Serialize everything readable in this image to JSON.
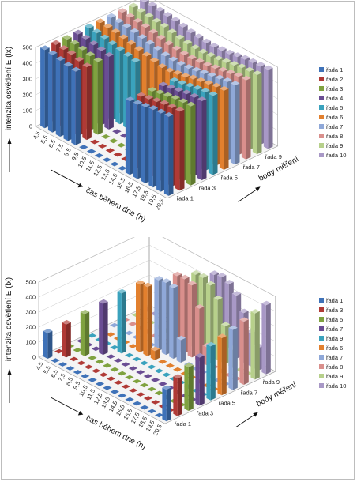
{
  "charts": [
    {
      "ylabel": "intenzita osvětlení E (lx)",
      "xlabel": "čas během dne (h)",
      "zlabel": "body měření",
      "y_ticks": [
        "0",
        "100",
        "200",
        "300",
        "400",
        "500"
      ],
      "x_ticks": [
        "4,5",
        "5,5",
        "6,5",
        "7,5",
        "8,5",
        "9,5",
        "10,5",
        "11,5",
        "12,5",
        "13,5",
        "14,5",
        "15,5",
        "16,5",
        "17,5",
        "18,5",
        "19,5",
        "20,5"
      ],
      "z_ticks": [
        "řada 1",
        "řada 3",
        "řada 5",
        "řada 7",
        "řada 9"
      ],
      "legend": [
        "řada 1",
        "řada 2",
        "řada 3",
        "řada 4",
        "řada 5",
        "řada 6",
        "řada 7",
        "řada 8",
        "řada 9",
        "řada 10"
      ]
    },
    {
      "ylabel": "intenzita osvětlení E (lx)",
      "xlabel": "čas během dne (h)",
      "zlabel": "body měření",
      "y_ticks": [
        "0",
        "100",
        "200",
        "300",
        "400",
        "500"
      ],
      "x_ticks": [
        "4,5",
        "5,5",
        "6,5",
        "7,5",
        "8,5",
        "9,5",
        "10,5",
        "11,5",
        "12,5",
        "13,5",
        "14,5",
        "15,5",
        "16,5",
        "17,5",
        "18,5",
        "19,5",
        "20,5"
      ],
      "z_ticks": [
        "řada 1",
        "řada 3",
        "řada 5",
        "řada 7",
        "řada 9"
      ],
      "legend": [
        "řada 1",
        "řada 3",
        "řada 5",
        "řada 7",
        "řada 9",
        "řada 6",
        "řada 7",
        "řada 8",
        "řada 9",
        "řada 10"
      ]
    }
  ],
  "colors": {
    "palette": [
      "#3f72b8",
      "#b03a36",
      "#7fa23f",
      "#6a4d93",
      "#3aa2bd",
      "#e2802e",
      "#8fa8d8",
      "#d98f8c",
      "#b7d08b",
      "#a898c6"
    ]
  },
  "chart_data": [
    {
      "type": "bar",
      "ylim": [
        0,
        500
      ],
      "categories": [
        "4,5",
        "5,5",
        "6,5",
        "7,5",
        "8,5",
        "9,5",
        "10,5",
        "11,5",
        "12,5",
        "13,5",
        "14,5",
        "15,5",
        "16,5",
        "17,5",
        "18,5",
        "19,5",
        "20,5"
      ],
      "series": [
        {
          "name": "řada 1",
          "values": [
            495,
            490,
            480,
            470,
            465,
            0,
            0,
            0,
            0,
            0,
            0,
            465,
            470,
            480,
            490,
            495,
            500
          ]
        },
        {
          "name": "řada 2",
          "values": [
            495,
            490,
            485,
            470,
            460,
            0,
            0,
            0,
            0,
            0,
            0,
            460,
            470,
            480,
            490,
            495,
            500
          ]
        },
        {
          "name": "řada 3",
          "values": [
            495,
            490,
            480,
            470,
            460,
            0,
            0,
            0,
            0,
            0,
            0,
            460,
            470,
            480,
            490,
            495,
            500
          ]
        },
        {
          "name": "řada 4",
          "values": [
            495,
            490,
            480,
            470,
            460,
            0,
            0,
            0,
            0,
            0,
            0,
            460,
            470,
            480,
            490,
            495,
            500
          ]
        },
        {
          "name": "řada 5",
          "values": [
            500,
            495,
            485,
            475,
            465,
            455,
            445,
            0,
            0,
            0,
            0,
            455,
            465,
            475,
            485,
            495,
            500
          ]
        },
        {
          "name": "řada 6",
          "values": [
            500,
            495,
            490,
            480,
            470,
            460,
            450,
            440,
            430,
            430,
            440,
            450,
            465,
            475,
            485,
            495,
            500
          ]
        },
        {
          "name": "řada 7",
          "values": [
            500,
            495,
            490,
            485,
            475,
            465,
            455,
            445,
            440,
            440,
            445,
            455,
            465,
            475,
            485,
            495,
            500
          ]
        },
        {
          "name": "řada 8",
          "values": [
            500,
            495,
            490,
            485,
            475,
            465,
            455,
            450,
            445,
            445,
            450,
            455,
            465,
            475,
            485,
            495,
            500
          ]
        },
        {
          "name": "řada 9",
          "values": [
            500,
            495,
            490,
            485,
            480,
            470,
            460,
            455,
            450,
            450,
            455,
            460,
            470,
            480,
            490,
            495,
            500
          ]
        },
        {
          "name": "řada 10",
          "values": [
            500,
            500,
            495,
            490,
            485,
            475,
            465,
            460,
            455,
            455,
            460,
            465,
            475,
            485,
            490,
            495,
            500
          ]
        }
      ]
    },
    {
      "type": "bar",
      "ylim": [
        0,
        500
      ],
      "categories": [
        "4,5",
        "5,5",
        "6,5",
        "7,5",
        "8,5",
        "9,5",
        "10,5",
        "11,5",
        "12,5",
        "13,5",
        "14,5",
        "15,5",
        "16,5",
        "17,5",
        "18,5",
        "19,5",
        "20,5"
      ],
      "series": [
        {
          "name": "řada 1",
          "values": [
            170,
            0,
            0,
            0,
            0,
            0,
            0,
            0,
            0,
            0,
            0,
            0,
            0,
            0,
            0,
            0,
            210
          ]
        },
        {
          "name": "řada 3",
          "values": [
            0,
            220,
            0,
            0,
            0,
            0,
            0,
            0,
            0,
            0,
            0,
            0,
            0,
            0,
            0,
            0,
            250
          ]
        },
        {
          "name": "řada 5",
          "values": [
            0,
            0,
            280,
            0,
            0,
            0,
            0,
            0,
            0,
            0,
            0,
            0,
            0,
            0,
            0,
            0,
            290
          ]
        },
        {
          "name": "řada 7",
          "values": [
            0,
            0,
            0,
            340,
            0,
            0,
            0,
            0,
            0,
            0,
            0,
            0,
            0,
            0,
            0,
            0,
            320
          ]
        },
        {
          "name": "řada 9",
          "values": [
            0,
            0,
            0,
            0,
            400,
            0,
            0,
            0,
            0,
            0,
            0,
            0,
            0,
            0,
            0,
            0,
            360
          ]
        },
        {
          "name": "řada 6",
          "values": [
            0,
            0,
            0,
            0,
            0,
            450,
            460,
            60,
            0,
            0,
            0,
            0,
            0,
            0,
            0,
            0,
            380
          ]
        },
        {
          "name": "řada 7",
          "values": [
            0,
            0,
            0,
            0,
            0,
            0,
            470,
            480,
            470,
            150,
            0,
            0,
            0,
            0,
            0,
            0,
            400
          ]
        },
        {
          "name": "řada 8",
          "values": [
            0,
            0,
            0,
            0,
            0,
            0,
            0,
            490,
            495,
            480,
            350,
            120,
            0,
            0,
            0,
            0,
            420
          ]
        },
        {
          "name": "řada 9",
          "values": [
            0,
            0,
            0,
            0,
            0,
            0,
            0,
            0,
            490,
            495,
            470,
            400,
            250,
            120,
            0,
            0,
            440
          ]
        },
        {
          "name": "řada 10",
          "values": [
            0,
            0,
            0,
            0,
            0,
            0,
            0,
            0,
            0,
            480,
            490,
            470,
            420,
            330,
            220,
            150,
            460
          ]
        }
      ]
    }
  ]
}
